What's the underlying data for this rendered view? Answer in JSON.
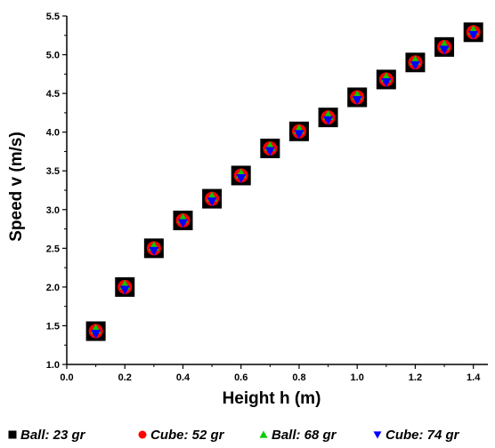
{
  "chart_data": {
    "type": "scatter",
    "xlabel": "Height h (m)",
    "ylabel": "Speed v (m/s)",
    "xlim": [
      0.0,
      1.45
    ],
    "ylim": [
      1.0,
      5.5
    ],
    "x_ticks": [
      "0.0",
      "0.2",
      "0.4",
      "0.6",
      "0.8",
      "1.0",
      "1.2",
      "1.4"
    ],
    "y_ticks": [
      "1.0",
      "1.5",
      "2.0",
      "2.5",
      "3.0",
      "3.5",
      "4.0",
      "4.5",
      "5.0",
      "5.5"
    ],
    "grid": false,
    "legend_placement": "bottom",
    "x": [
      0.1,
      0.2,
      0.3,
      0.4,
      0.5,
      0.6,
      0.7,
      0.8,
      0.9,
      1.0,
      1.1,
      1.2,
      1.3,
      1.4
    ],
    "series": [
      {
        "name": "Ball: 23 gr",
        "marker": "square",
        "color": "#000000",
        "values": [
          1.43,
          2.0,
          2.5,
          2.86,
          3.14,
          3.44,
          3.79,
          4.01,
          4.19,
          4.45,
          4.68,
          4.9,
          5.1,
          5.29
        ]
      },
      {
        "name": "Cube: 52 gr",
        "marker": "circle",
        "color": "#ff0000",
        "values": [
          1.43,
          2.0,
          2.5,
          2.86,
          3.14,
          3.44,
          3.79,
          4.01,
          4.19,
          4.45,
          4.68,
          4.9,
          5.1,
          5.29
        ]
      },
      {
        "name": "Ball: 68 gr",
        "marker": "triangle-up",
        "color": "#00cc00",
        "values": [
          1.43,
          2.0,
          2.5,
          2.86,
          3.14,
          3.44,
          3.79,
          4.01,
          4.19,
          4.45,
          4.68,
          4.9,
          5.1,
          5.29
        ]
      },
      {
        "name": "Cube: 74 gr",
        "marker": "triangle-down",
        "color": "#0000ff",
        "values": [
          1.43,
          2.0,
          2.5,
          2.86,
          3.14,
          3.44,
          3.79,
          4.01,
          4.19,
          4.45,
          4.68,
          4.9,
          5.1,
          5.29
        ]
      }
    ]
  }
}
